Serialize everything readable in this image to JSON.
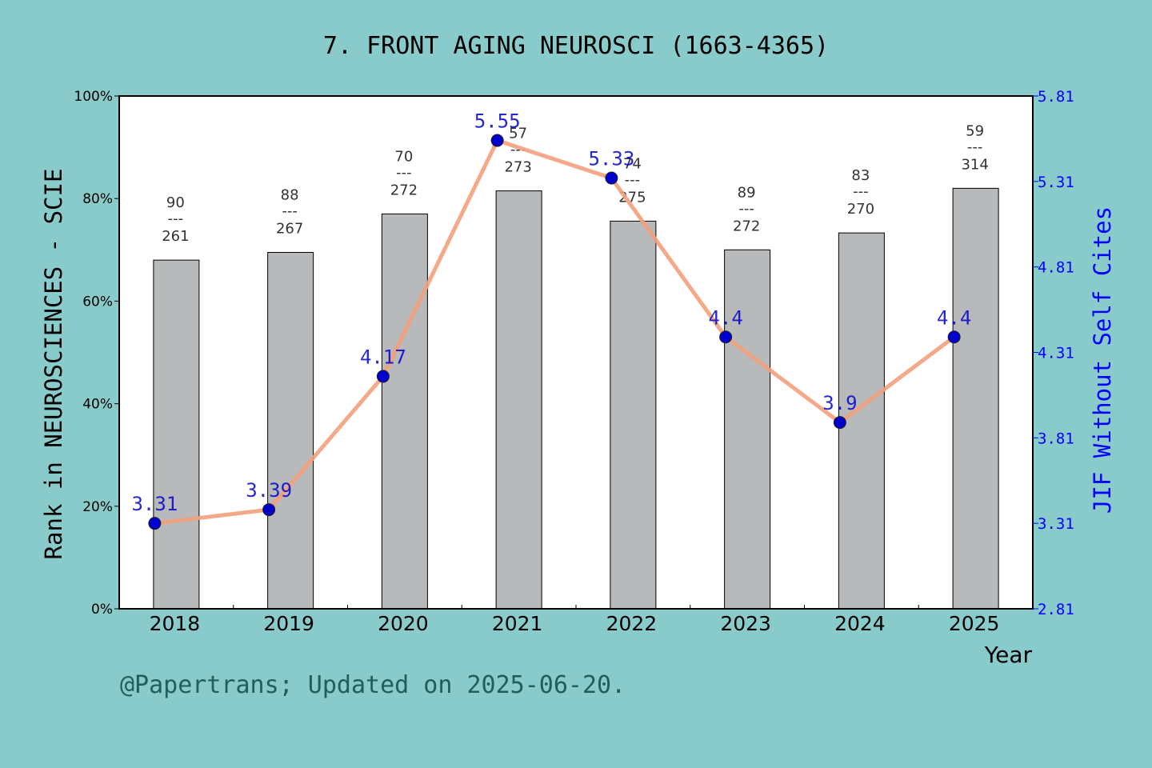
{
  "chart_data": {
    "type": "bar",
    "title": "7. FRONT AGING NEUROSCI (1663-4365)",
    "xlabel": "Year",
    "ylabel": "Rank in NEUROSCIENCES - SCIE",
    "y2label": "JIF Without Self Cites",
    "footer": "@Papertrans; Updated on 2025-06-20.",
    "categories": [
      "2018",
      "2019",
      "2020",
      "2021",
      "2022",
      "2023",
      "2024",
      "2025"
    ],
    "ylim": [
      0,
      100
    ],
    "yticks": [
      "0%",
      "20%",
      "40%",
      "60%",
      "80%",
      "100%"
    ],
    "y2lim": [
      2.81,
      5.81
    ],
    "y2ticks": [
      "2.81",
      "3.31",
      "3.81",
      "4.31",
      "4.81",
      "5.31",
      "5.81"
    ],
    "bars": {
      "values": [
        68,
        69.5,
        77,
        81.5,
        75.6,
        70,
        73.3,
        82
      ],
      "rank": [
        "90",
        "88",
        "70",
        "57",
        "74",
        "89",
        "83",
        "59"
      ],
      "total": [
        "261",
        "267",
        "272",
        "273",
        "275",
        "272",
        "270",
        "314"
      ],
      "separator": "---"
    },
    "line": {
      "values": [
        3.31,
        3.39,
        4.17,
        5.55,
        5.33,
        4.4,
        3.9,
        4.4
      ],
      "labels": [
        "3.31",
        "3.39",
        "4.17",
        "5.55",
        "5.33",
        "4.4",
        "3.9",
        "4.4"
      ]
    },
    "colors": {
      "bar": "#b8b9ba",
      "line": "#f3a07c",
      "marker": "#0000cc",
      "right_axis": "#0000ff",
      "background": "#88cbca",
      "footer": "#1f5f58"
    },
    "grid": false,
    "legend": "none"
  }
}
